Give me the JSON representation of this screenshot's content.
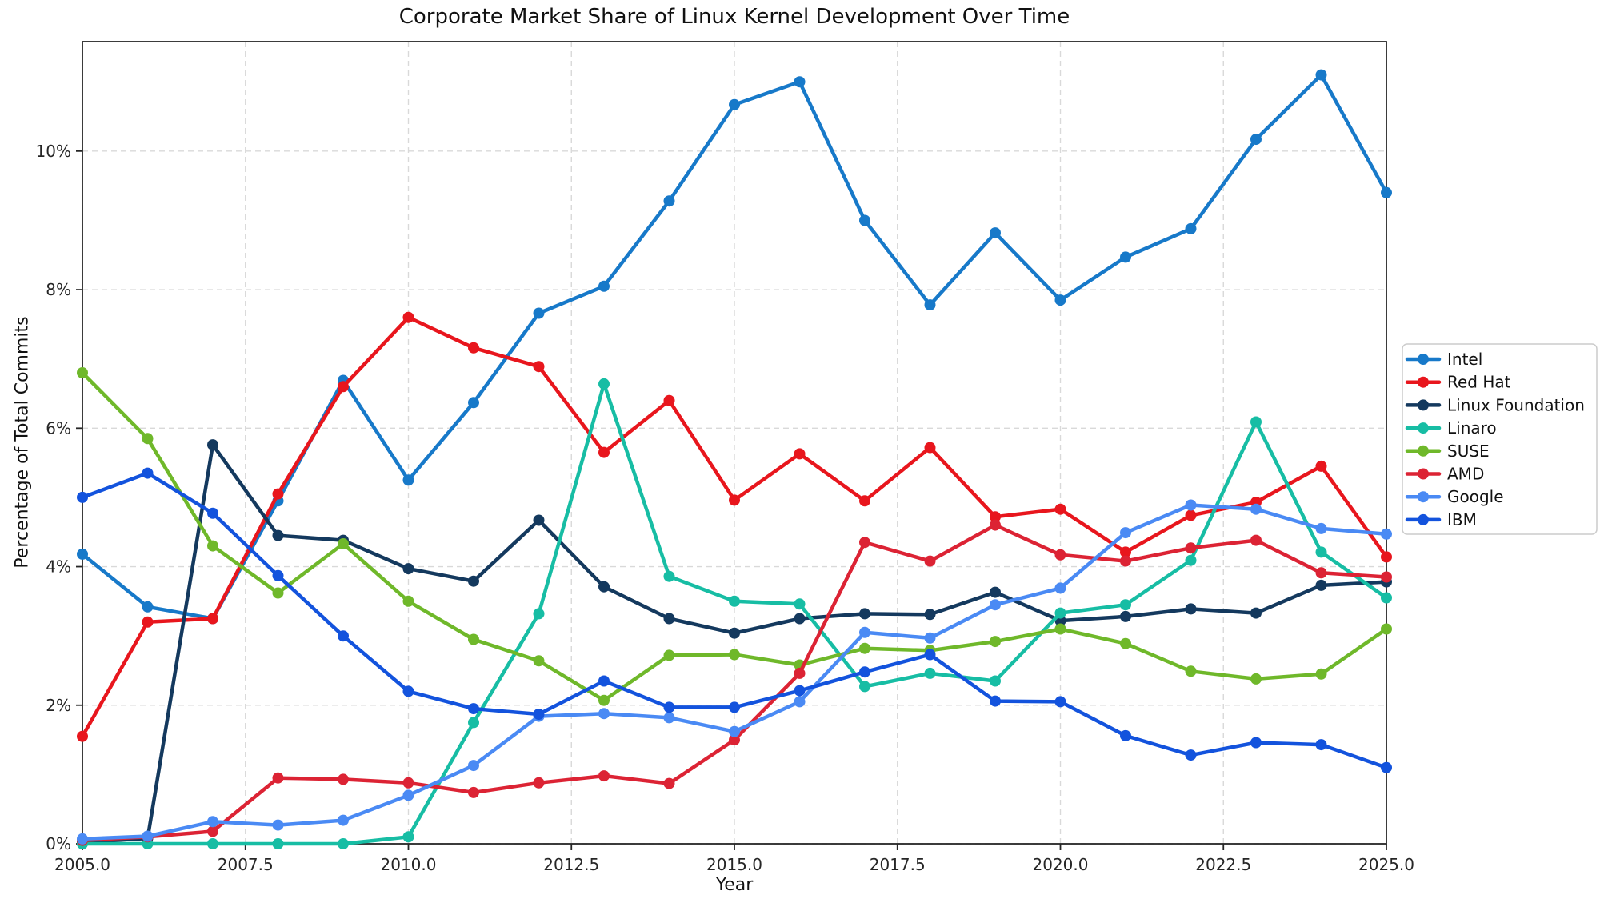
{
  "chart_data": {
    "type": "line",
    "title": "Corporate Market Share of Linux Kernel Development Over Time",
    "xlabel": "Year",
    "ylabel": "Percentage of Total Commits",
    "xlim": [
      2005,
      2025
    ],
    "ylim": [
      0,
      11.58
    ],
    "grid": true,
    "grid_style": "dashed light gray",
    "legend_position": "outside right, vertically centered",
    "x_ticks": [
      2005,
      2007.5,
      2010,
      2012.5,
      2015,
      2017.5,
      2020,
      2022.5,
      2025
    ],
    "x_tick_labels": [
      "2005.0",
      "2007.5",
      "2010.0",
      "2012.5",
      "2015.0",
      "2017.5",
      "2020.0",
      "2022.5",
      "2025.0"
    ],
    "y_ticks": [
      0,
      2,
      4,
      6,
      8,
      10
    ],
    "y_tick_labels": [
      "0%",
      "2%",
      "4%",
      "6%",
      "8%",
      "10%"
    ],
    "x": [
      2005,
      2006,
      2007,
      2008,
      2009,
      2010,
      2011,
      2012,
      2013,
      2014,
      2015,
      2016,
      2017,
      2018,
      2019,
      2020,
      2021,
      2022,
      2023,
      2024,
      2025
    ],
    "series": [
      {
        "name": "Intel",
        "color": "#1779c9",
        "values": [
          4.18,
          3.42,
          3.25,
          4.95,
          6.69,
          5.25,
          6.37,
          7.66,
          8.05,
          9.28,
          10.67,
          11.0,
          9.0,
          7.78,
          8.82,
          7.85,
          8.47,
          8.88,
          10.17,
          11.1,
          9.4
        ]
      },
      {
        "name": "Red Hat",
        "color": "#e8161d",
        "values": [
          1.55,
          3.2,
          3.25,
          5.05,
          6.6,
          7.6,
          7.16,
          6.89,
          5.65,
          6.4,
          4.96,
          5.63,
          4.95,
          5.72,
          4.72,
          4.83,
          4.21,
          4.74,
          4.93,
          5.45,
          4.14
        ]
      },
      {
        "name": "Linux Foundation",
        "color": "#14395e",
        "values": [
          0.02,
          0.08,
          5.76,
          4.45,
          4.38,
          3.97,
          3.79,
          4.67,
          3.71,
          3.25,
          3.04,
          3.25,
          3.32,
          3.31,
          3.63,
          3.22,
          3.28,
          3.39,
          3.33,
          3.73,
          3.78
        ]
      },
      {
        "name": "Linaro",
        "color": "#17bda4",
        "values": [
          0.0,
          0.0,
          0.0,
          0.0,
          0.0,
          0.1,
          1.75,
          3.32,
          6.64,
          3.86,
          3.5,
          3.46,
          2.27,
          2.46,
          2.35,
          3.33,
          3.45,
          4.09,
          6.09,
          4.21,
          3.55
        ]
      },
      {
        "name": "SUSE",
        "color": "#6fb82a",
        "values": [
          6.8,
          5.85,
          4.3,
          3.62,
          4.33,
          3.5,
          2.95,
          2.64,
          2.07,
          2.72,
          2.73,
          2.58,
          2.82,
          2.79,
          2.92,
          3.1,
          2.89,
          2.49,
          2.38,
          2.45,
          3.1
        ]
      },
      {
        "name": "AMD",
        "color": "#dc2334",
        "values": [
          0.05,
          0.1,
          0.18,
          0.95,
          0.93,
          0.88,
          0.74,
          0.88,
          0.98,
          0.87,
          1.5,
          2.46,
          4.35,
          4.08,
          4.6,
          4.17,
          4.08,
          4.27,
          4.38,
          3.91,
          3.85
        ]
      },
      {
        "name": "Google",
        "color": "#4a8af4",
        "values": [
          0.07,
          0.11,
          0.32,
          0.27,
          0.34,
          0.7,
          1.13,
          1.84,
          1.88,
          1.82,
          1.62,
          2.05,
          3.05,
          2.97,
          3.45,
          3.69,
          4.49,
          4.89,
          4.83,
          4.55,
          4.47
        ]
      },
      {
        "name": "IBM",
        "color": "#1353dd",
        "values": [
          5.0,
          5.35,
          4.77,
          3.87,
          3.0,
          2.2,
          1.95,
          1.87,
          2.35,
          1.97,
          1.97,
          2.21,
          2.48,
          2.73,
          2.06,
          2.05,
          1.56,
          1.28,
          1.46,
          1.43,
          1.1
        ]
      }
    ]
  }
}
